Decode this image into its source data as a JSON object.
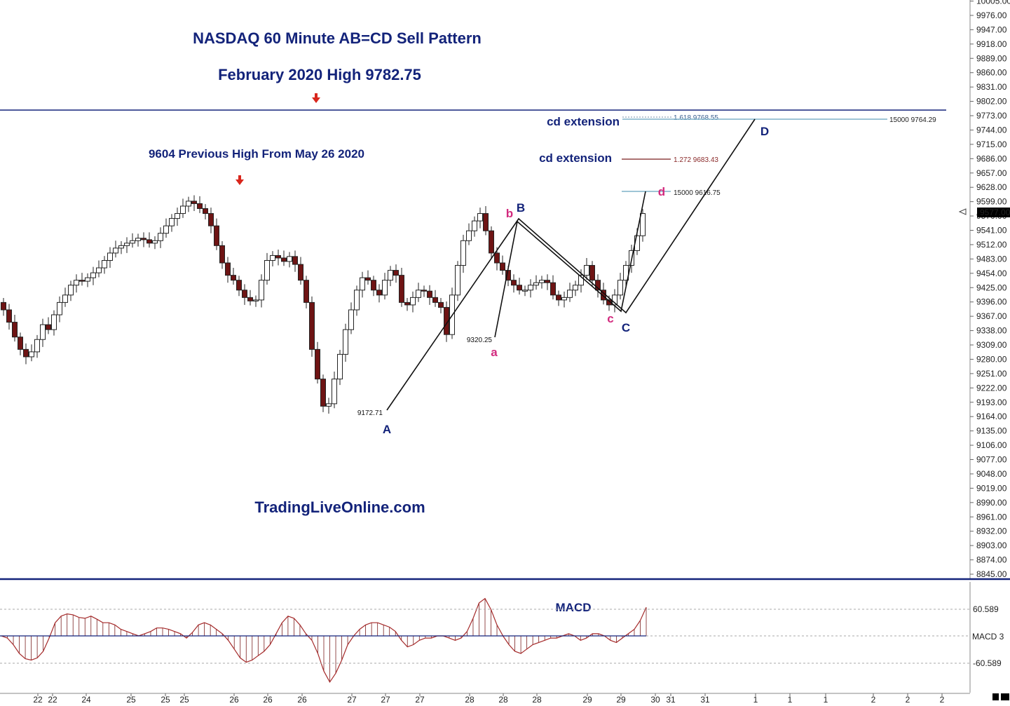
{
  "chart_data": {
    "type": "candlestick",
    "title": "NASDAQ 60 Minute AB=CD Sell Pattern",
    "subtitle": "February 2020 High 9782.75",
    "watermark": "TradingLiveOnline.com",
    "price_axis": {
      "ticks": [
        "10005.00",
        "9976.00",
        "9947.00",
        "9918.00",
        "9889.00",
        "9860.00",
        "9831.00",
        "9802.00",
        "9773.00",
        "9744.00",
        "9715.00",
        "9686.00",
        "9657.00",
        "9628.00",
        "9599.00",
        "9570.00",
        "9541.00",
        "9512.00",
        "9483.00",
        "9454.00",
        "9425.00",
        "9396.00",
        "9367.00",
        "9338.00",
        "9309.00",
        "9280.00",
        "9251.00",
        "9222.00",
        "9193.00",
        "9164.00",
        "9135.00",
        "9106.00",
        "9077.00",
        "9048.00",
        "9019.00",
        "8990.00",
        "8961.00",
        "8932.00",
        "8903.00",
        "8874.00",
        "8845.00"
      ],
      "range": [
        8845,
        10005
      ],
      "current_price": "9577.00"
    },
    "date_axis": [
      "22",
      "22",
      "24",
      "25",
      "25",
      "25",
      "26",
      "26",
      "26",
      "27",
      "27",
      "27",
      "28",
      "28",
      "28",
      "29",
      "29",
      "30",
      "31",
      "31",
      "1",
      "1",
      "1",
      "2",
      "2",
      "2"
    ],
    "close_series": [
      9380,
      9355,
      9325,
      9300,
      9285,
      9295,
      9320,
      9350,
      9340,
      9370,
      9395,
      9410,
      9430,
      9440,
      9438,
      9445,
      9455,
      9465,
      9480,
      9495,
      9505,
      9510,
      9515,
      9520,
      9525,
      9522,
      9515,
      9520,
      9535,
      9550,
      9565,
      9575,
      9590,
      9600,
      9595,
      9585,
      9575,
      9550,
      9510,
      9475,
      9450,
      9440,
      9420,
      9405,
      9398,
      9400,
      9440,
      9480,
      9490,
      9485,
      9478,
      9488,
      9472,
      9440,
      9395,
      9300,
      9240,
      9185,
      9190,
      9240,
      9290,
      9340,
      9380,
      9420,
      9445,
      9440,
      9420,
      9410,
      9440,
      9460,
      9450,
      9395,
      9390,
      9405,
      9420,
      9418,
      9405,
      9395,
      9385,
      9330,
      9410,
      9470,
      9520,
      9540,
      9560,
      9575,
      9540,
      9495,
      9475,
      9460,
      9440,
      9430,
      9420,
      9420,
      9430,
      9435,
      9440,
      9435,
      9410,
      9400,
      9405,
      9420,
      9430,
      9450,
      9470,
      9440,
      9420,
      9400,
      9390,
      9410,
      9440,
      9470,
      9500,
      9530,
      9575
    ],
    "levels": [
      {
        "label": "9604 Previous High From May 26 2020",
        "price": 9604
      },
      {
        "label": "February 2020 High 9782.75",
        "price": 9782.75
      }
    ],
    "extensions": [
      {
        "name": "cd extension",
        "ratio": "1.618",
        "value": "9768.55",
        "text": "1.618  9768.55"
      },
      {
        "name": "cd extension",
        "ratio": "1.272",
        "value": "9683.43",
        "text": "1.272  9683.43"
      },
      {
        "name": "",
        "ratio": "15000",
        "value": "9616.75",
        "text": "15000  9616.75"
      }
    ],
    "d_projection": {
      "text": "15000  9764.29",
      "value": 9764.29
    },
    "pattern_points": {
      "A": {
        "label": "A",
        "price": 9172.71,
        "text": "9172.71"
      },
      "B": {
        "label": "B",
        "price": 9565
      },
      "C": {
        "label": "C",
        "price": 9375
      },
      "D": {
        "label": "D",
        "price": 9764.29
      },
      "a": {
        "label": "a",
        "price": 9320.25,
        "text": "9320.25"
      },
      "b": {
        "label": "b",
        "price": 9560
      },
      "c": {
        "label": "c",
        "price": 9375
      },
      "d": {
        "label": "d",
        "price": 9616.75
      }
    },
    "macd": {
      "label": "MACD",
      "axis_label": "MACD  3",
      "upper": "60.589",
      "lower": "-60.589",
      "values": [
        0,
        -5,
        -20,
        -40,
        -52,
        -55,
        -50,
        -35,
        -5,
        30,
        45,
        50,
        48,
        42,
        40,
        45,
        38,
        30,
        30,
        25,
        15,
        10,
        5,
        0,
        5,
        10,
        18,
        18,
        15,
        10,
        5,
        -5,
        8,
        25,
        30,
        25,
        15,
        5,
        -10,
        -30,
        -50,
        -60,
        -55,
        -45,
        -35,
        -20,
        5,
        30,
        45,
        40,
        25,
        5,
        -10,
        -40,
        -80,
        -105,
        -85,
        -55,
        -20,
        0,
        15,
        25,
        30,
        30,
        25,
        20,
        10,
        -10,
        -25,
        -20,
        -10,
        -5,
        -5,
        0,
        0,
        -5,
        -10,
        -5,
        10,
        40,
        75,
        85,
        60,
        25,
        0,
        -20,
        -35,
        -40,
        -30,
        -20,
        -15,
        -10,
        -5,
        -5,
        0,
        5,
        0,
        -10,
        -5,
        5,
        5,
        0,
        -10,
        -15,
        -5,
        5,
        15,
        35,
        65
      ]
    }
  }
}
